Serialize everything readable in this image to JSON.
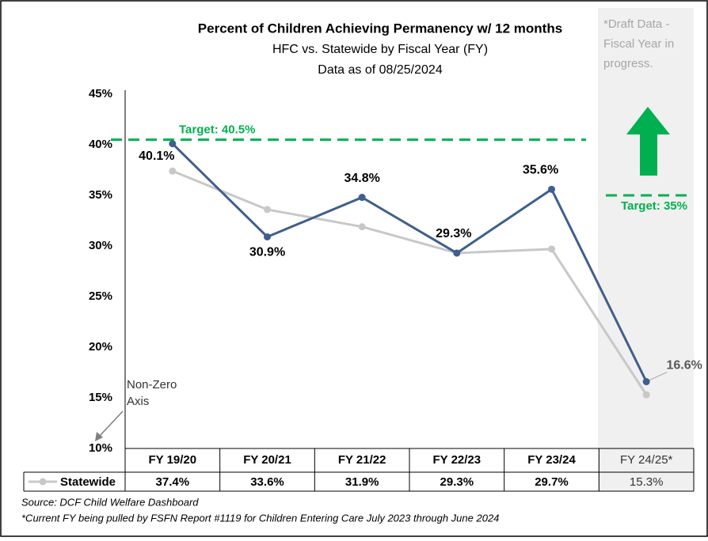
{
  "chart_data": {
    "type": "line",
    "title": "Percent of Children Achieving Permanency w/ 12 months",
    "subtitle": [
      "HFC vs. Statewide by Fiscal Year (FY)",
      "Data as of 08/25/2024"
    ],
    "categories": [
      "FY 19/20",
      "FY 20/21",
      "FY 21/22",
      "FY 22/23",
      "FY 23/24",
      "FY 24/25*"
    ],
    "series": [
      {
        "color": "#3f5f8c",
        "values": [
          40.1,
          30.9,
          34.8,
          29.3,
          35.6,
          16.6
        ],
        "value_labels": [
          "40.1%",
          "30.9%",
          "34.8%",
          "29.3%",
          "35.6%",
          "16.6%"
        ]
      },
      {
        "name": "Statewide",
        "color": "#c8c8c8",
        "values": [
          37.4,
          33.6,
          31.9,
          29.3,
          29.7,
          15.3
        ],
        "value_labels": [
          "37.4%",
          "33.6%",
          "31.9%",
          "29.3%",
          "29.7%",
          "15.3%"
        ]
      }
    ],
    "ylim": [
      10,
      45
    ],
    "yticks": [
      {
        "value": 10,
        "label": "10%"
      },
      {
        "value": 15,
        "label": "15%"
      },
      {
        "value": 20,
        "label": "20%"
      },
      {
        "value": 25,
        "label": "25%"
      },
      {
        "value": 30,
        "label": "30%"
      },
      {
        "value": 35,
        "label": "35%"
      },
      {
        "value": 40,
        "label": "40%"
      },
      {
        "value": 45,
        "label": "45%"
      }
    ],
    "targets": [
      {
        "label": "Target: 40.5%",
        "value": 40.5,
        "color": "#00b050"
      },
      {
        "label": "Target: 35%",
        "value": 35,
        "color": "#00b050"
      }
    ],
    "draft_note": [
      "*Draft Data -",
      "Fiscal Year in",
      "progress."
    ],
    "axis_note": [
      "Non-Zero",
      "Axis"
    ],
    "source": "Source: DCF Child Welfare Dashboard",
    "footnote": "*Current FY being pulled by FSFN Report #1119 for Children Entering Care July 2023 through June 2024"
  }
}
